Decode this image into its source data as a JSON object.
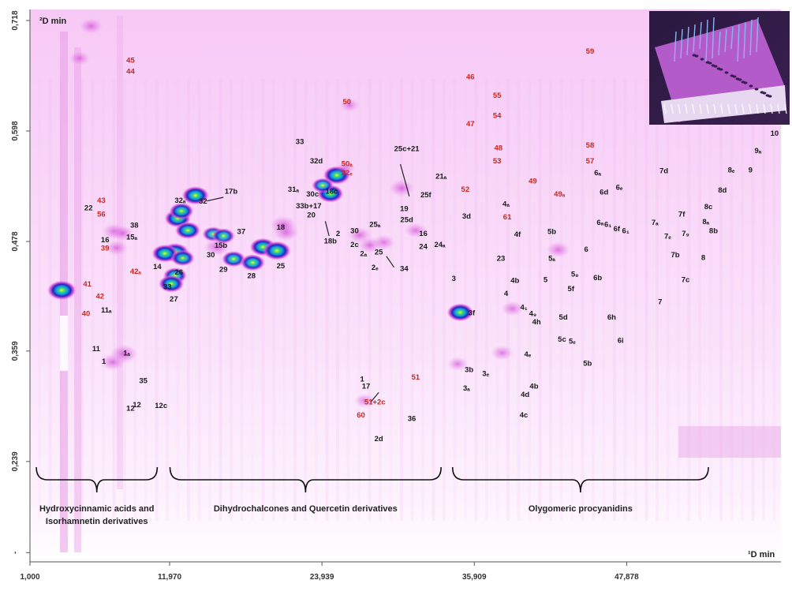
{
  "chart_data": {
    "type": "heatmap",
    "x_ticks": [
      "1,000",
      "11,970",
      "23,939",
      "35,909",
      "47,878"
    ],
    "y_ticks": [
      "0,718",
      "0,598",
      "0,478",
      "0,359",
      "0,239",
      "-"
    ],
    "xlabel": "¹D min",
    "ylabel": "²D min",
    "colors": {
      "background": "#fbe4fb",
      "spot": "#d23ad8",
      "label_black": "#1a1a1a",
      "label_red": "#c8281e",
      "inset": "#6a2a8a"
    },
    "groups": [
      {
        "line1": "Hydroxycinnamic acids and",
        "line2": "Isorhamnetin derivatives",
        "from": 1.5,
        "to": 11.0
      },
      {
        "line1": "Dihydrochalcones and Quercetin derivatives",
        "line2": "",
        "from": 12.0,
        "to": 33.3
      },
      {
        "line1": "Olygomeric procyanidins",
        "line2": "",
        "from": 34.2,
        "to": 54.3
      }
    ],
    "spots": [
      {
        "x": 3.5,
        "y": 0.425,
        "i": 1.0
      },
      {
        "x": 7.5,
        "y": 0.347,
        "i": 0.45
      },
      {
        "x": 8.4,
        "y": 0.356,
        "i": 0.55
      },
      {
        "x": 7.6,
        "y": 0.489,
        "i": 0.4
      },
      {
        "x": 8.3,
        "y": 0.487,
        "i": 0.35
      },
      {
        "x": 7.8,
        "y": 0.471,
        "i": 0.35
      },
      {
        "x": 12.6,
        "y": 0.503,
        "i": 0.85
      },
      {
        "x": 13.4,
        "y": 0.49,
        "i": 0.8
      },
      {
        "x": 12.9,
        "y": 0.511,
        "i": 0.75
      },
      {
        "x": 14.0,
        "y": 0.528,
        "i": 0.9
      },
      {
        "x": 12.4,
        "y": 0.466,
        "i": 0.95
      },
      {
        "x": 11.6,
        "y": 0.465,
        "i": 0.85
      },
      {
        "x": 13.0,
        "y": 0.46,
        "i": 0.7
      },
      {
        "x": 12.4,
        "y": 0.441,
        "i": 0.7
      },
      {
        "x": 12.1,
        "y": 0.432,
        "i": 0.8
      },
      {
        "x": 15.4,
        "y": 0.486,
        "i": 0.6
      },
      {
        "x": 16.2,
        "y": 0.484,
        "i": 0.65
      },
      {
        "x": 15.7,
        "y": 0.472,
        "i": 0.5
      },
      {
        "x": 17.0,
        "y": 0.459,
        "i": 0.7
      },
      {
        "x": 18.5,
        "y": 0.455,
        "i": 0.75
      },
      {
        "x": 19.3,
        "y": 0.472,
        "i": 0.85
      },
      {
        "x": 20.4,
        "y": 0.468,
        "i": 0.95
      },
      {
        "x": 21.1,
        "y": 0.488,
        "i": 0.5
      },
      {
        "x": 20.9,
        "y": 0.496,
        "i": 0.5
      },
      {
        "x": 24.6,
        "y": 0.53,
        "i": 0.85
      },
      {
        "x": 25.1,
        "y": 0.55,
        "i": 0.9
      },
      {
        "x": 24.0,
        "y": 0.539,
        "i": 0.6
      },
      {
        "x": 27.7,
        "y": 0.474,
        "i": 0.4
      },
      {
        "x": 26.9,
        "y": 0.485,
        "i": 0.4
      },
      {
        "x": 28.8,
        "y": 0.477,
        "i": 0.35
      },
      {
        "x": 30.2,
        "y": 0.536,
        "i": 0.45
      },
      {
        "x": 31.3,
        "y": 0.49,
        "i": 0.35
      },
      {
        "x": 34.8,
        "y": 0.401,
        "i": 0.85
      },
      {
        "x": 34.6,
        "y": 0.345,
        "i": 0.3
      },
      {
        "x": 38.1,
        "y": 0.357,
        "i": 0.35
      },
      {
        "x": 38.9,
        "y": 0.405,
        "i": 0.35
      },
      {
        "x": 42.5,
        "y": 0.469,
        "i": 0.4
      },
      {
        "x": 27.3,
        "y": 0.305,
        "i": 0.3
      },
      {
        "x": 4.9,
        "y": 0.677,
        "i": 0.3
      },
      {
        "x": 26.1,
        "y": 0.626,
        "i": 0.25
      },
      {
        "x": 5.8,
        "y": 0.712,
        "i": 0.4
      },
      {
        "x": 25.8,
        "y": 0.558,
        "i": 0.25
      }
    ],
    "labels": [
      {
        "t": "45",
        "x": 8.9,
        "y": 0.672,
        "c": "red"
      },
      {
        "t": "44",
        "x": 8.9,
        "y": 0.66,
        "c": "red"
      },
      {
        "t": "43",
        "x": 6.6,
        "y": 0.52,
        "c": "red"
      },
      {
        "t": "56",
        "x": 6.6,
        "y": 0.505,
        "c": "red"
      },
      {
        "t": "22",
        "x": 5.6,
        "y": 0.512,
        "c": "black"
      },
      {
        "t": "38",
        "x": 9.2,
        "y": 0.493,
        "c": "black"
      },
      {
        "t": "15ₐ",
        "x": 9.0,
        "y": 0.48,
        "c": "black"
      },
      {
        "t": "16",
        "x": 6.9,
        "y": 0.477,
        "c": "black"
      },
      {
        "t": "39",
        "x": 6.9,
        "y": 0.468,
        "c": "red"
      },
      {
        "t": "42ₐ",
        "x": 9.3,
        "y": 0.443,
        "c": "red"
      },
      {
        "t": "14",
        "x": 11.0,
        "y": 0.448,
        "c": "black"
      },
      {
        "t": "41",
        "x": 5.5,
        "y": 0.429,
        "c": "red"
      },
      {
        "t": "42",
        "x": 6.5,
        "y": 0.416,
        "c": "red"
      },
      {
        "t": "40",
        "x": 5.4,
        "y": 0.397,
        "c": "red"
      },
      {
        "t": "11ₐ",
        "x": 7.0,
        "y": 0.401,
        "c": "black"
      },
      {
        "t": "11",
        "x": 6.2,
        "y": 0.359,
        "c": "black"
      },
      {
        "t": "1ₐ",
        "x": 8.6,
        "y": 0.354,
        "c": "black"
      },
      {
        "t": "1",
        "x": 6.8,
        "y": 0.345,
        "c": "black"
      },
      {
        "t": "35",
        "x": 9.9,
        "y": 0.324,
        "c": "black"
      },
      {
        "t": "12",
        "x": 8.9,
        "y": 0.294,
        "c": "black"
      },
      {
        "t": "12",
        "x": 9.4,
        "y": 0.298,
        "c": "black"
      },
      {
        "t": "12c",
        "x": 11.3,
        "y": 0.297,
        "c": "black"
      },
      {
        "t": "32ₐ",
        "x": 12.8,
        "y": 0.52,
        "c": "black"
      },
      {
        "t": "32",
        "x": 14.6,
        "y": 0.519,
        "c": "black"
      },
      {
        "t": "17b",
        "x": 16.8,
        "y": 0.53,
        "c": "black"
      },
      {
        "t": "37",
        "x": 17.6,
        "y": 0.486,
        "c": "black"
      },
      {
        "t": "15b",
        "x": 16.0,
        "y": 0.471,
        "c": "black"
      },
      {
        "t": "30",
        "x": 15.2,
        "y": 0.461,
        "c": "black"
      },
      {
        "t": "29",
        "x": 16.2,
        "y": 0.445,
        "c": "black"
      },
      {
        "t": "26",
        "x": 12.7,
        "y": 0.442,
        "c": "black"
      },
      {
        "t": "33",
        "x": 11.8,
        "y": 0.426,
        "c": "black"
      },
      {
        "t": "27",
        "x": 12.3,
        "y": 0.413,
        "c": "black"
      },
      {
        "t": "28",
        "x": 18.4,
        "y": 0.438,
        "c": "black"
      },
      {
        "t": "25",
        "x": 20.7,
        "y": 0.449,
        "c": "black"
      },
      {
        "t": "18",
        "x": 20.7,
        "y": 0.491,
        "c": "black"
      },
      {
        "t": "33",
        "x": 22.2,
        "y": 0.584,
        "c": "black"
      },
      {
        "t": "32d",
        "x": 23.5,
        "y": 0.563,
        "c": "black"
      },
      {
        "t": "50ₐ",
        "x": 25.9,
        "y": 0.56,
        "c": "red"
      },
      {
        "t": "32ₑ",
        "x": 25.9,
        "y": 0.55,
        "c": "red"
      },
      {
        "t": "50",
        "x": 25.9,
        "y": 0.627,
        "c": "red"
      },
      {
        "t": "31ₐ",
        "x": 21.7,
        "y": 0.532,
        "c": "black"
      },
      {
        "t": "30c",
        "x": 23.2,
        "y": 0.527,
        "c": "black"
      },
      {
        "t": "18c",
        "x": 24.7,
        "y": 0.53,
        "c": "black"
      },
      {
        "t": "33b+17",
        "x": 22.9,
        "y": 0.514,
        "c": "black"
      },
      {
        "t": "20",
        "x": 23.1,
        "y": 0.504,
        "c": "black"
      },
      {
        "t": "18b",
        "x": 24.6,
        "y": 0.476,
        "c": "black"
      },
      {
        "t": "2",
        "x": 25.2,
        "y": 0.484,
        "c": "black"
      },
      {
        "t": "30",
        "x": 26.5,
        "y": 0.487,
        "c": "black"
      },
      {
        "t": "2c",
        "x": 26.5,
        "y": 0.472,
        "c": "black"
      },
      {
        "t": "2ₐ",
        "x": 27.2,
        "y": 0.462,
        "c": "black"
      },
      {
        "t": "25",
        "x": 28.4,
        "y": 0.464,
        "c": "black"
      },
      {
        "t": "2ₑ",
        "x": 28.1,
        "y": 0.447,
        "c": "black"
      },
      {
        "t": "34",
        "x": 30.4,
        "y": 0.446,
        "c": "black"
      },
      {
        "t": "19",
        "x": 30.4,
        "y": 0.511,
        "c": "black"
      },
      {
        "t": "25d",
        "x": 30.6,
        "y": 0.499,
        "c": "black"
      },
      {
        "t": "25ₐ",
        "x": 28.1,
        "y": 0.494,
        "c": "black"
      },
      {
        "t": "16",
        "x": 31.9,
        "y": 0.484,
        "c": "black"
      },
      {
        "t": "24",
        "x": 31.9,
        "y": 0.47,
        "c": "black"
      },
      {
        "t": "24ₐ",
        "x": 33.2,
        "y": 0.472,
        "c": "black"
      },
      {
        "t": "25c+21",
        "x": 30.6,
        "y": 0.576,
        "c": "black"
      },
      {
        "t": "21ₐ",
        "x": 33.3,
        "y": 0.546,
        "c": "black"
      },
      {
        "t": "25f",
        "x": 32.1,
        "y": 0.526,
        "c": "black"
      },
      {
        "t": "52",
        "x": 35.2,
        "y": 0.532,
        "c": "red"
      },
      {
        "t": "46",
        "x": 35.6,
        "y": 0.654,
        "c": "red"
      },
      {
        "t": "55",
        "x": 37.7,
        "y": 0.634,
        "c": "red"
      },
      {
        "t": "54",
        "x": 37.7,
        "y": 0.612,
        "c": "red"
      },
      {
        "t": "47",
        "x": 35.6,
        "y": 0.603,
        "c": "red"
      },
      {
        "t": "48",
        "x": 37.8,
        "y": 0.577,
        "c": "red"
      },
      {
        "t": "53",
        "x": 37.7,
        "y": 0.563,
        "c": "red"
      },
      {
        "t": "49",
        "x": 40.5,
        "y": 0.541,
        "c": "red"
      },
      {
        "t": "49ₐ",
        "x": 42.6,
        "y": 0.527,
        "c": "red"
      },
      {
        "t": "59",
        "x": 45.0,
        "y": 0.682,
        "c": "red"
      },
      {
        "t": "58",
        "x": 45.0,
        "y": 0.58,
        "c": "red"
      },
      {
        "t": "57",
        "x": 45.0,
        "y": 0.563,
        "c": "red"
      },
      {
        "t": "61",
        "x": 38.5,
        "y": 0.502,
        "c": "red"
      },
      {
        "t": "3d",
        "x": 35.3,
        "y": 0.503,
        "c": "black"
      },
      {
        "t": "4ₐ",
        "x": 38.4,
        "y": 0.516,
        "c": "black"
      },
      {
        "t": "4f",
        "x": 39.3,
        "y": 0.483,
        "c": "black"
      },
      {
        "t": "23",
        "x": 38.0,
        "y": 0.457,
        "c": "black"
      },
      {
        "t": "3",
        "x": 34.3,
        "y": 0.435,
        "c": "black"
      },
      {
        "t": "4b",
        "x": 39.1,
        "y": 0.433,
        "c": "black"
      },
      {
        "t": "4",
        "x": 38.4,
        "y": 0.419,
        "c": "black"
      },
      {
        "t": "5",
        "x": 41.5,
        "y": 0.434,
        "c": "black"
      },
      {
        "t": "4₁",
        "x": 39.8,
        "y": 0.404,
        "c": "black"
      },
      {
        "t": "4₉",
        "x": 40.5,
        "y": 0.397,
        "c": "black"
      },
      {
        "t": "4h",
        "x": 40.8,
        "y": 0.388,
        "c": "black"
      },
      {
        "t": "3f",
        "x": 35.7,
        "y": 0.398,
        "c": "black"
      },
      {
        "t": "5b",
        "x": 42.0,
        "y": 0.486,
        "c": "black"
      },
      {
        "t": "5ₐ",
        "x": 42.0,
        "y": 0.457,
        "c": "black"
      },
      {
        "t": "5₉",
        "x": 43.8,
        "y": 0.44,
        "c": "black"
      },
      {
        "t": "5f",
        "x": 43.5,
        "y": 0.424,
        "c": "black"
      },
      {
        "t": "5d",
        "x": 42.9,
        "y": 0.393,
        "c": "black"
      },
      {
        "t": "5c",
        "x": 42.8,
        "y": 0.369,
        "c": "black"
      },
      {
        "t": "5ₑ",
        "x": 43.6,
        "y": 0.367,
        "c": "black"
      },
      {
        "t": "5b",
        "x": 44.8,
        "y": 0.343,
        "c": "black"
      },
      {
        "t": "6",
        "x": 44.7,
        "y": 0.467,
        "c": "black"
      },
      {
        "t": "6b",
        "x": 45.6,
        "y": 0.436,
        "c": "black"
      },
      {
        "t": "6h",
        "x": 46.7,
        "y": 0.393,
        "c": "black"
      },
      {
        "t": "6i",
        "x": 47.4,
        "y": 0.368,
        "c": "black"
      },
      {
        "t": "6ₐ",
        "x": 45.6,
        "y": 0.55,
        "c": "black"
      },
      {
        "t": "6d",
        "x": 46.1,
        "y": 0.529,
        "c": "black"
      },
      {
        "t": "6ₑ",
        "x": 47.3,
        "y": 0.534,
        "c": "black"
      },
      {
        "t": "6ₐ",
        "x": 45.8,
        "y": 0.496,
        "c": "black"
      },
      {
        "t": "6₁",
        "x": 46.4,
        "y": 0.494,
        "c": "black"
      },
      {
        "t": "6f",
        "x": 47.1,
        "y": 0.489,
        "c": "black"
      },
      {
        "t": "6₁",
        "x": 47.8,
        "y": 0.487,
        "c": "black"
      },
      {
        "t": "4ₑ",
        "x": 40.1,
        "y": 0.353,
        "c": "black"
      },
      {
        "t": "4b",
        "x": 40.6,
        "y": 0.318,
        "c": "black"
      },
      {
        "t": "4d",
        "x": 39.9,
        "y": 0.309,
        "c": "black"
      },
      {
        "t": "4c",
        "x": 39.8,
        "y": 0.287,
        "c": "black"
      },
      {
        "t": "3b",
        "x": 35.5,
        "y": 0.336,
        "c": "black"
      },
      {
        "t": "3ₑ",
        "x": 36.8,
        "y": 0.332,
        "c": "black"
      },
      {
        "t": "3ₐ",
        "x": 35.3,
        "y": 0.316,
        "c": "black"
      },
      {
        "t": "7d",
        "x": 50.8,
        "y": 0.552,
        "c": "black"
      },
      {
        "t": "7ₐ",
        "x": 50.1,
        "y": 0.496,
        "c": "black"
      },
      {
        "t": "7f",
        "x": 52.2,
        "y": 0.505,
        "c": "black"
      },
      {
        "t": "7ₑ",
        "x": 51.1,
        "y": 0.481,
        "c": "black"
      },
      {
        "t": "7₉",
        "x": 52.5,
        "y": 0.484,
        "c": "black"
      },
      {
        "t": "7b",
        "x": 51.7,
        "y": 0.461,
        "c": "black"
      },
      {
        "t": "7c",
        "x": 52.5,
        "y": 0.434,
        "c": "black"
      },
      {
        "t": "7",
        "x": 50.5,
        "y": 0.41,
        "c": "black"
      },
      {
        "t": "8",
        "x": 53.9,
        "y": 0.458,
        "c": "black"
      },
      {
        "t": "8b",
        "x": 54.7,
        "y": 0.487,
        "c": "black"
      },
      {
        "t": "8ₐ",
        "x": 54.1,
        "y": 0.497,
        "c": "black"
      },
      {
        "t": "8c",
        "x": 54.3,
        "y": 0.513,
        "c": "black"
      },
      {
        "t": "8d",
        "x": 55.4,
        "y": 0.531,
        "c": "black"
      },
      {
        "t": "8ₑ",
        "x": 56.1,
        "y": 0.553,
        "c": "black"
      },
      {
        "t": "9",
        "x": 57.6,
        "y": 0.553,
        "c": "black"
      },
      {
        "t": "9ₐ",
        "x": 58.2,
        "y": 0.574,
        "c": "black"
      },
      {
        "t": "10",
        "x": 59.5,
        "y": 0.593,
        "c": "black"
      },
      {
        "t": "1",
        "x": 27.1,
        "y": 0.326,
        "c": "black"
      },
      {
        "t": "17",
        "x": 27.4,
        "y": 0.318,
        "c": "black"
      },
      {
        "t": "51+2c",
        "x": 28.1,
        "y": 0.301,
        "c": "red"
      },
      {
        "t": "51",
        "x": 31.3,
        "y": 0.328,
        "c": "red"
      },
      {
        "t": "60",
        "x": 27.0,
        "y": 0.287,
        "c": "red"
      },
      {
        "t": "36",
        "x": 31.0,
        "y": 0.283,
        "c": "black"
      },
      {
        "t": "2d",
        "x": 28.4,
        "y": 0.261,
        "c": "black"
      }
    ]
  }
}
